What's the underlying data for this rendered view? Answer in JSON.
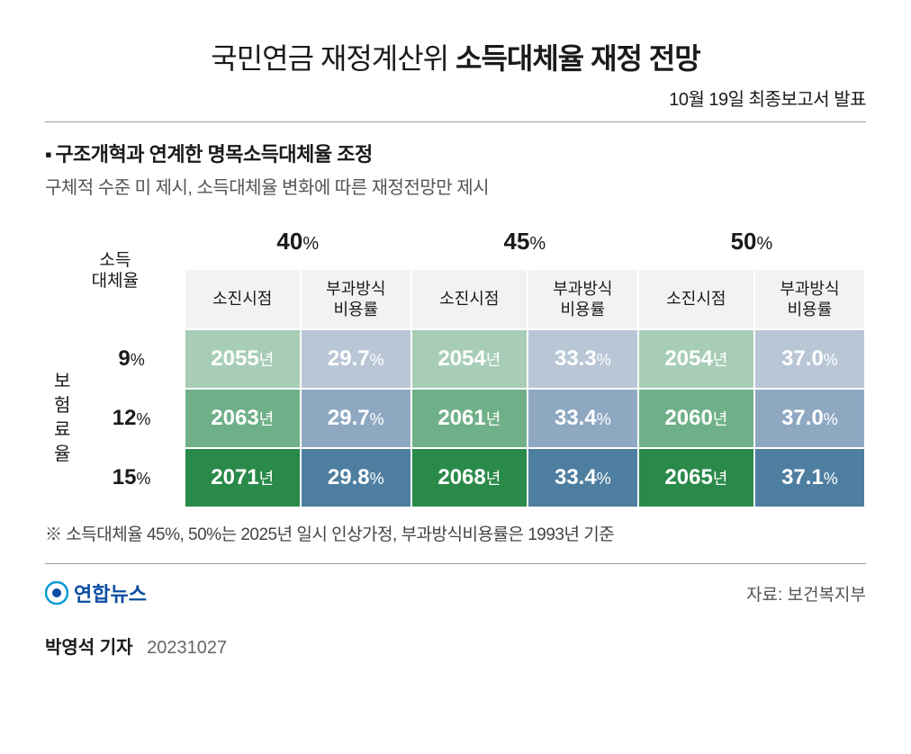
{
  "title_prefix": "국민연금 재정계산위",
  "title_bold": "소득대체율 재정 전망",
  "subtitle": "10월 19일 최종보고서 발표",
  "section_title": "구조개혁과 연계한 명목소득대체율 조정",
  "section_note": "구체적 수준 미 제시, 소득대체율 변화에 따른 재정전망만 제시",
  "corner_label_top": "소득",
  "corner_label_bottom": "대체율",
  "col_rates": [
    "40",
    "45",
    "50"
  ],
  "pct_symbol": "%",
  "sub_cols": [
    "소진시점",
    "부과방식\n비용률"
  ],
  "row_group_label": "보\n험\n료\n율",
  "row_rates": [
    "9",
    "12",
    "15"
  ],
  "colors": {
    "green_light": "#a8cdb7",
    "green_mid": "#6fb088",
    "green_dark": "#2a8a4a",
    "blue_light": "#b9c6d6",
    "blue_mid": "#8fa8c2",
    "blue_dark": "#4e7ea0"
  },
  "cells": [
    [
      {
        "v": "2055",
        "s": "년",
        "bg": "green_light"
      },
      {
        "v": "29.7",
        "s": "%",
        "bg": "blue_light"
      },
      {
        "v": "2054",
        "s": "년",
        "bg": "green_light"
      },
      {
        "v": "33.3",
        "s": "%",
        "bg": "blue_light"
      },
      {
        "v": "2054",
        "s": "년",
        "bg": "green_light"
      },
      {
        "v": "37.0",
        "s": "%",
        "bg": "blue_light"
      }
    ],
    [
      {
        "v": "2063",
        "s": "년",
        "bg": "green_mid"
      },
      {
        "v": "29.7",
        "s": "%",
        "bg": "blue_mid"
      },
      {
        "v": "2061",
        "s": "년",
        "bg": "green_mid"
      },
      {
        "v": "33.4",
        "s": "%",
        "bg": "blue_mid"
      },
      {
        "v": "2060",
        "s": "년",
        "bg": "green_mid"
      },
      {
        "v": "37.0",
        "s": "%",
        "bg": "blue_mid"
      }
    ],
    [
      {
        "v": "2071",
        "s": "년",
        "bg": "green_dark"
      },
      {
        "v": "29.8",
        "s": "%",
        "bg": "blue_dark"
      },
      {
        "v": "2068",
        "s": "년",
        "bg": "green_dark"
      },
      {
        "v": "33.4",
        "s": "%",
        "bg": "blue_dark"
      },
      {
        "v": "2065",
        "s": "년",
        "bg": "green_dark"
      },
      {
        "v": "37.1",
        "s": "%",
        "bg": "blue_dark"
      }
    ]
  ],
  "footnote": "※ 소득대체율 45%, 50%는 2025년 일시 인상가정, 부과방식비용률은 1993년 기준",
  "logo_text": "연합뉴스",
  "source": "자료: 보건복지부",
  "byline_name": "박영석 기자",
  "byline_date": "20231027"
}
